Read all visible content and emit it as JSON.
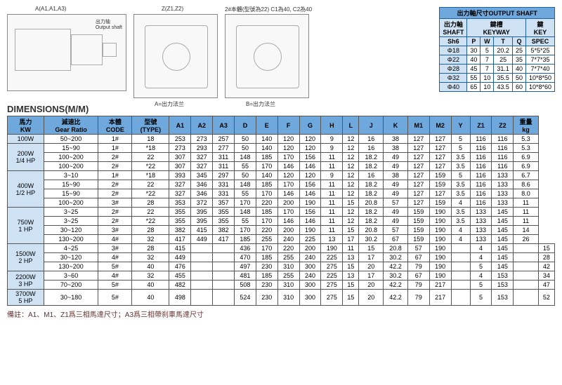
{
  "top_labels": {
    "diag1_top": "A(A1,A1,A3)",
    "diag1_shaft": "出力轴\nOutput shaft",
    "diag2_top": "Z(Z1,Z2)",
    "diag2_bottom": "A=出力法兰",
    "diag3_top": "2#本體(型號為22) C1為40, C2為40",
    "diag3_sub": "Z(Z1,Z2)",
    "diag3_bottom": "B=出力法兰"
  },
  "shaft": {
    "title": "出力軸尺寸OUTPUT SHAFT",
    "headers": {
      "shaft": "出力軸\nSHAFT",
      "keyway": "鍵槽\nKEYWAY",
      "key": "鍵\nKEY"
    },
    "sub": [
      "Sh6",
      "P",
      "W",
      "T",
      "Q",
      "SPEC"
    ],
    "rows": [
      [
        "Φ18",
        "30",
        "5",
        "20.2",
        "25",
        "5*5*25"
      ],
      [
        "Φ22",
        "40",
        "7",
        "25",
        "35",
        "7*7*35"
      ],
      [
        "Φ28",
        "45",
        "7",
        "31.1",
        "40",
        "7*7*40"
      ],
      [
        "Φ32",
        "55",
        "10",
        "35.5",
        "50",
        "10*8*50"
      ],
      [
        "Φ40",
        "65",
        "10",
        "43.5",
        "60",
        "10*8*60"
      ]
    ]
  },
  "dims": {
    "title": "DIMENSIONS(M/M)",
    "headers": [
      "馬力\nKW",
      "減速比\nGear Ratio",
      "本體\nCODE",
      "型號\n(TYPE)",
      "A1",
      "A2",
      "A3",
      "D",
      "E",
      "F",
      "G",
      "H",
      "L",
      "J",
      "K",
      "M1",
      "M2",
      "Y",
      "Z1",
      "Z2",
      "重量\nkg"
    ],
    "groups": [
      {
        "label": "100W",
        "rowspan": 1,
        "rows": [
          [
            "50~200",
            "1#",
            "18",
            "253",
            "273",
            "257",
            "50",
            "140",
            "120",
            "120",
            "9",
            "12",
            "16",
            "38",
            "127",
            "127",
            "5",
            "116",
            "116",
            "5.3"
          ]
        ]
      },
      {
        "label": "200W\n1/4 HP",
        "rowspan": 3,
        "rows": [
          [
            "15~90",
            "1#",
            "*18",
            "273",
            "293",
            "277",
            "50",
            "140",
            "120",
            "120",
            "9",
            "12",
            "16",
            "38",
            "127",
            "127",
            "5",
            "116",
            "116",
            "5.3"
          ],
          [
            "100~200",
            "2#",
            "22",
            "307",
            "327",
            "311",
            "148",
            "185",
            "170",
            "156",
            "11",
            "12",
            "18.2",
            "49",
            "127",
            "127",
            "3.5",
            "116",
            "116",
            "6.9"
          ],
          [
            "100~200",
            "2#",
            "*22",
            "307",
            "327",
            "311",
            "55",
            "170",
            "146",
            "146",
            "11",
            "12",
            "18.2",
            "49",
            "127",
            "127",
            "3.5",
            "116",
            "116",
            "6.9"
          ]
        ]
      },
      {
        "label": "400W\n1/2 HP",
        "rowspan": 4,
        "rows": [
          [
            "3~10",
            "1#",
            "*18",
            "393",
            "345",
            "297",
            "50",
            "140",
            "120",
            "120",
            "9",
            "12",
            "16",
            "38",
            "127",
            "159",
            "5",
            "116",
            "133",
            "6.7"
          ],
          [
            "15~90",
            "2#",
            "22",
            "327",
            "346",
            "331",
            "148",
            "185",
            "170",
            "156",
            "11",
            "12",
            "18.2",
            "49",
            "127",
            "159",
            "3.5",
            "116",
            "133",
            "8.6"
          ],
          [
            "15~90",
            "2#",
            "*22",
            "327",
            "346",
            "331",
            "55",
            "170",
            "146",
            "146",
            "11",
            "12",
            "18.2",
            "49",
            "127",
            "127",
            "3.5",
            "116",
            "133",
            "8.0"
          ],
          [
            "100~200",
            "3#",
            "28",
            "353",
            "372",
            "357",
            "170",
            "220",
            "200",
            "190",
            "11",
            "15",
            "20.8",
            "57",
            "127",
            "159",
            "4",
            "116",
            "133",
            "11"
          ]
        ]
      },
      {
        "label": "750W\n1 HP",
        "rowspan": 4,
        "rows": [
          [
            "3~25",
            "2#",
            "22",
            "355",
            "395",
            "355",
            "148",
            "185",
            "170",
            "156",
            "11",
            "12",
            "18.2",
            "49",
            "159",
            "190",
            "3.5",
            "133",
            "145",
            "11"
          ],
          [
            "3~25",
            "2#",
            "*22",
            "355",
            "395",
            "355",
            "55",
            "170",
            "146",
            "146",
            "11",
            "12",
            "18.2",
            "49",
            "159",
            "190",
            "3.5",
            "133",
            "145",
            "11"
          ],
          [
            "30~120",
            "3#",
            "28",
            "382",
            "415",
            "382",
            "170",
            "220",
            "200",
            "190",
            "11",
            "15",
            "20.8",
            "57",
            "159",
            "190",
            "4",
            "133",
            "145",
            "14"
          ],
          [
            "130~200",
            "4#",
            "32",
            "417",
            "449",
            "417",
            "185",
            "255",
            "240",
            "225",
            "13",
            "17",
            "30.2",
            "67",
            "159",
            "190",
            "4",
            "133",
            "145",
            "26"
          ]
        ]
      },
      {
        "label": "1500W\n2 HP",
        "rowspan": 3,
        "rows": [
          [
            "4~25",
            "3#",
            "28",
            "415",
            "",
            "",
            "436",
            "170",
            "220",
            "200",
            "190",
            "11",
            "15",
            "20.8",
            "57",
            "190",
            "",
            "4",
            "145",
            "",
            "15"
          ],
          [
            "30~120",
            "4#",
            "32",
            "449",
            "",
            "",
            "470",
            "185",
            "255",
            "240",
            "225",
            "13",
            "17",
            "30.2",
            "67",
            "190",
            "",
            "4",
            "145",
            "",
            "28"
          ],
          [
            "130~200",
            "5#",
            "40",
            "476",
            "",
            "",
            "497",
            "230",
            "310",
            "300",
            "275",
            "15",
            "20",
            "42.2",
            "79",
            "190",
            "",
            "5",
            "145",
            "",
            "42"
          ]
        ]
      },
      {
        "label": "2200W\n3 HP",
        "rowspan": 2,
        "rows": [
          [
            "3~60",
            "4#",
            "32",
            "455",
            "",
            "",
            "481",
            "185",
            "255",
            "240",
            "225",
            "13",
            "17",
            "30.2",
            "67",
            "190",
            "",
            "4",
            "153",
            "",
            "34"
          ],
          [
            "70~200",
            "5#",
            "40",
            "482",
            "",
            "",
            "508",
            "230",
            "310",
            "300",
            "275",
            "15",
            "20",
            "42.2",
            "79",
            "217",
            "",
            "5",
            "153",
            "",
            "47"
          ]
        ]
      },
      {
        "label": "3700W\n5 HP",
        "rowspan": 1,
        "rows": [
          [
            "30~180",
            "5#",
            "40",
            "498",
            "",
            "",
            "524",
            "230",
            "310",
            "300",
            "275",
            "15",
            "20",
            "42.2",
            "79",
            "217",
            "",
            "5",
            "153",
            "",
            "52"
          ]
        ]
      }
    ],
    "footnote": "備註：A1、M1、Z1爲三相馬達尺寸；A3爲三相帶刹車馬達尺寸"
  },
  "colors": {
    "header_bg": "#6fa8dc",
    "rowlabel_bg": "#cfe2f3",
    "border": "#555555"
  }
}
